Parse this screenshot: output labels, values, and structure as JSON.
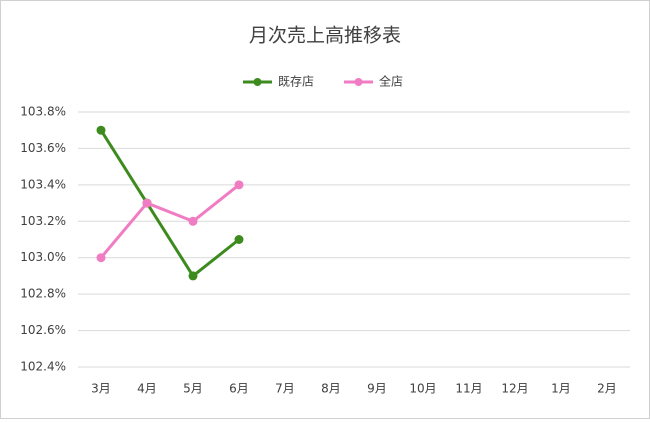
{
  "chart_data": {
    "type": "line",
    "title": "月次売上高推移表",
    "categories": [
      "3月",
      "4月",
      "5月",
      "6月",
      "7月",
      "8月",
      "9月",
      "10月",
      "11月",
      "12月",
      "1月",
      "2月"
    ],
    "series": [
      {
        "name": "既存店",
        "color": "#3d8b1f",
        "values": [
          103.7,
          103.3,
          102.9,
          103.1,
          null,
          null,
          null,
          null,
          null,
          null,
          null,
          null
        ]
      },
      {
        "name": "全店",
        "color": "#f07cc3",
        "values": [
          103.0,
          103.3,
          103.2,
          103.4,
          null,
          null,
          null,
          null,
          null,
          null,
          null,
          null
        ]
      }
    ],
    "ylim": [
      102.4,
      103.8
    ],
    "yticks": [
      {
        "value": 102.4,
        "label": "102.4%"
      },
      {
        "value": 102.6,
        "label": "102.6%"
      },
      {
        "value": 102.8,
        "label": "102.8%"
      },
      {
        "value": 103.0,
        "label": "103.0%"
      },
      {
        "value": 103.2,
        "label": "103.2%"
      },
      {
        "value": 103.4,
        "label": "103.4%"
      },
      {
        "value": 103.6,
        "label": "103.6%"
      },
      {
        "value": 103.8,
        "label": "103.8%"
      }
    ],
    "grid": true,
    "legend": "top"
  }
}
